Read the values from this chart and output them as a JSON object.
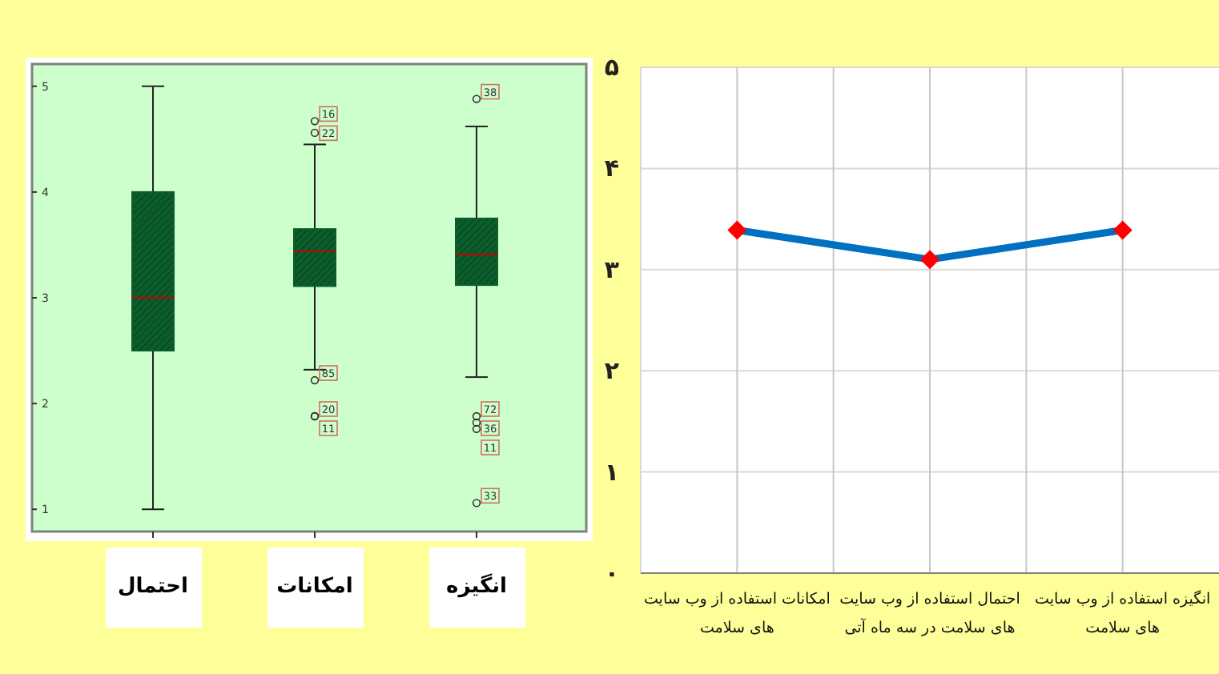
{
  "chart_data": [
    {
      "type": "box",
      "categories": [
        "احتمال",
        "امکانات",
        "انگیزه"
      ],
      "series": [
        {
          "color": "#0b5e2b",
          "boxes": [
            {
              "low": 1,
              "q1": 2.5,
              "median": 3,
              "q3": 4,
              "high": 5
            },
            {
              "low": 2.32,
              "q1": 3.11,
              "median": 3.44,
              "q3": 3.65,
              "high": 4.45,
              "outliers": [
                4.67,
                4.56,
                2.22,
                1.88,
                1.88
              ]
            },
            {
              "low": 2.25,
              "q1": 3.12,
              "median": 3.41,
              "q3": 3.75,
              "high": 4.62,
              "outliers": [
                4.88,
                1.88,
                1.82,
                1.76,
                1.06
              ]
            }
          ]
        }
      ],
      "ylim": [
        0.79,
        5.21
      ],
      "yticks": [
        1,
        2,
        3,
        4,
        5
      ],
      "annotations": [
        "16",
        "22",
        "85",
        "20",
        "11",
        "38",
        "72",
        "36",
        "11",
        "33"
      ]
    },
    {
      "type": "line",
      "categories": [
        "امکانات استفاده از وب سایت های سلامت",
        "احتمال استفاده از وب سایت های سلامت در سه ماه آتی",
        "انگیزه استفاده از وب سایت های سلامت"
      ],
      "series": [
        {
          "color": "#0070c0",
          "colors": [
            "#ff0000",
            "#ff0000",
            "#ff0000"
          ],
          "values": [
            3.39,
            3.1,
            3.39
          ]
        }
      ],
      "marker": "diamond",
      "ylim": [
        0,
        5
      ],
      "yticks": [
        {
          "value": 0,
          "label": "۰"
        },
        {
          "value": 1,
          "label": "۱"
        },
        {
          "value": 2,
          "label": "۲"
        },
        {
          "value": 3,
          "label": "۳"
        },
        {
          "value": 4,
          "label": "۴"
        },
        {
          "value": 5,
          "label": "۵"
        }
      ],
      "grid": true
    }
  ]
}
